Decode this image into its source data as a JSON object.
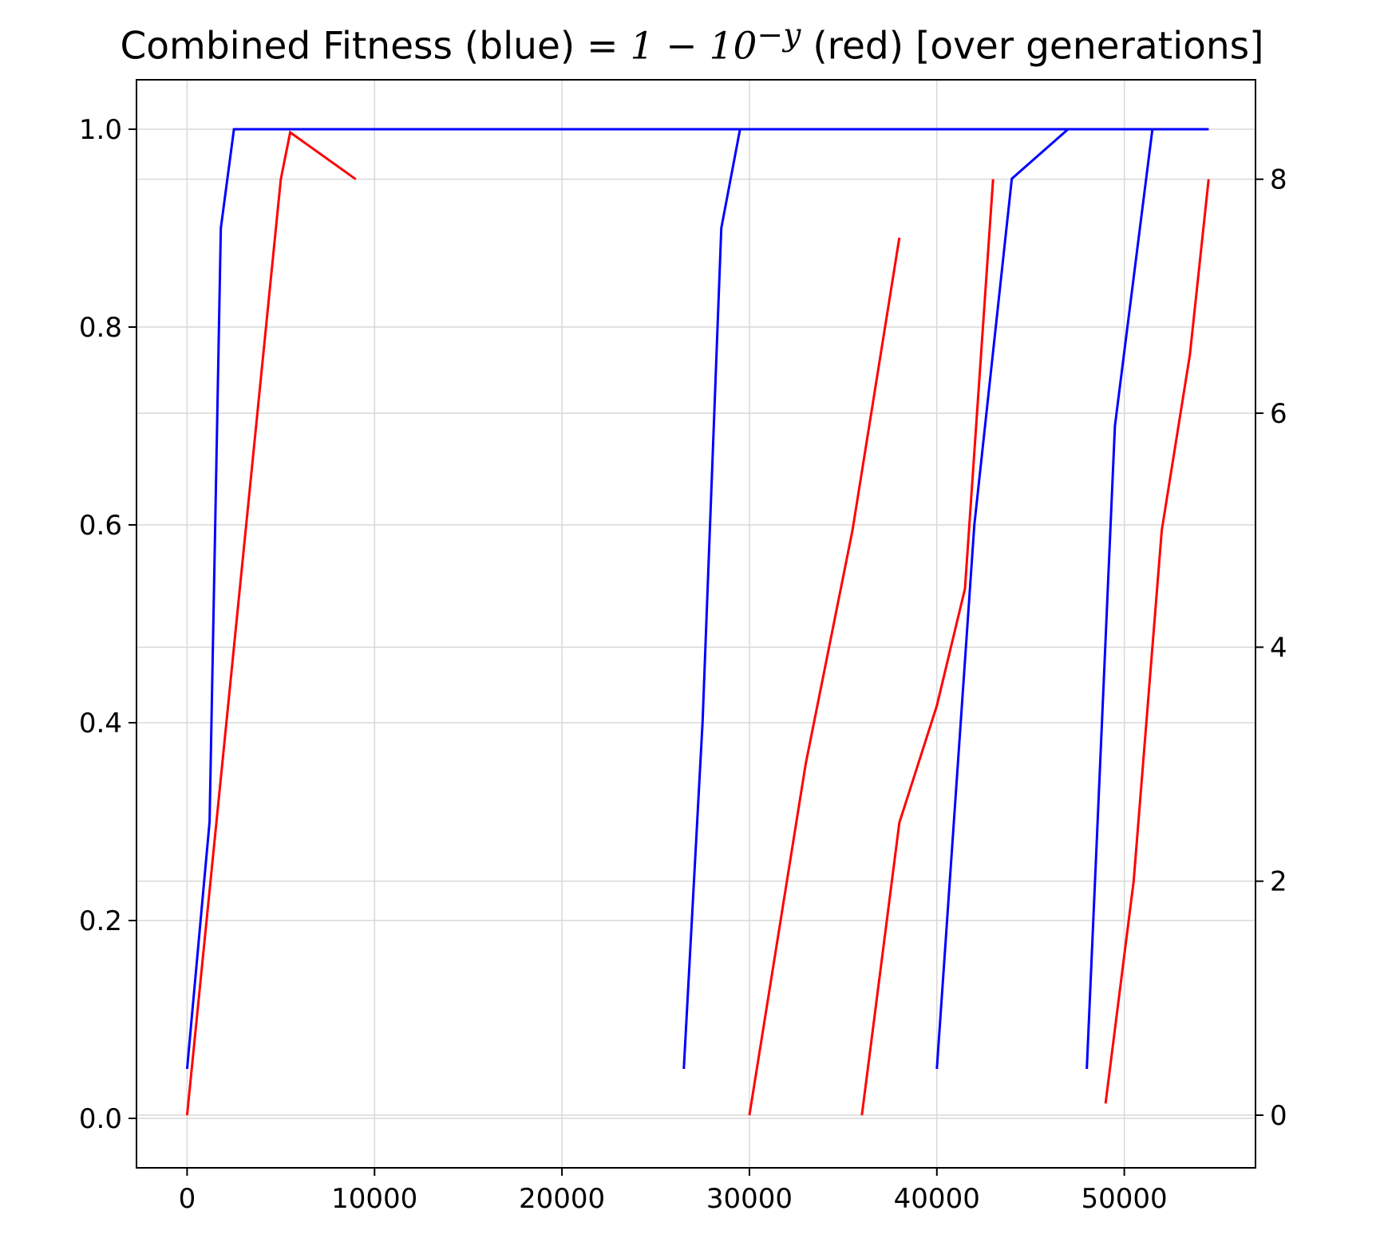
{
  "chart_data": {
    "type": "line",
    "title": {
      "prefix": "Combined Fitness (blue) =  ",
      "formula_base": "1 − 10",
      "formula_exp": "−y",
      "suffix": " (red) [over generations]"
    },
    "xlabel": "",
    "ylabel": "",
    "xlim": [
      -2700,
      57000
    ],
    "ylim": [
      -0.05,
      1.05
    ],
    "y2lim": [
      -0.45,
      8.85
    ],
    "x_ticks": [
      0,
      10000,
      20000,
      30000,
      40000,
      50000
    ],
    "y_ticks": [
      0.0,
      0.2,
      0.4,
      0.6,
      0.8,
      1.0
    ],
    "y2_ticks": [
      0,
      2,
      4,
      6,
      8
    ],
    "x_tick_labels": [
      "0",
      "10000",
      "20000",
      "30000",
      "40000",
      "50000"
    ],
    "y_tick_labels": [
      "0.0",
      "0.2",
      "0.4",
      "0.6",
      "0.8",
      "1.0"
    ],
    "y2_tick_labels": [
      "0",
      "2",
      "4",
      "6",
      "8"
    ],
    "grid": true,
    "colors": {
      "blue": "#0000ff",
      "red": "#ff0000",
      "grid": "#d9d9d9"
    },
    "series": [
      {
        "axis": "left",
        "color": "blue",
        "values": [
          [
            0,
            0.05
          ],
          [
            1200,
            0.3
          ],
          [
            1800,
            0.9
          ],
          [
            2500,
            1.0
          ],
          [
            54500,
            1.0
          ]
        ]
      },
      {
        "axis": "left",
        "color": "blue",
        "values": [
          [
            26500,
            0.05
          ],
          [
            27500,
            0.4
          ],
          [
            28500,
            0.9
          ],
          [
            29500,
            1.0
          ],
          [
            38000,
            1.0
          ]
        ]
      },
      {
        "axis": "left",
        "color": "blue",
        "values": [
          [
            40000,
            0.05
          ],
          [
            42000,
            0.6
          ],
          [
            44000,
            0.95
          ],
          [
            47000,
            1.0
          ],
          [
            48200,
            1.0
          ]
        ]
      },
      {
        "axis": "left",
        "color": "blue",
        "values": [
          [
            48000,
            0.05
          ],
          [
            49500,
            0.7
          ],
          [
            51500,
            1.0
          ],
          [
            54500,
            1.0
          ]
        ]
      },
      {
        "axis": "right",
        "color": "red",
        "values": [
          [
            0,
            0.0
          ],
          [
            2500,
            4.0
          ],
          [
            5000,
            8.0
          ],
          [
            5500,
            8.4
          ],
          [
            9000,
            8.0
          ]
        ]
      },
      {
        "axis": "right",
        "color": "red",
        "values": [
          [
            30000,
            0.0
          ],
          [
            33000,
            3.0
          ],
          [
            35500,
            5.0
          ],
          [
            38000,
            7.5
          ]
        ]
      },
      {
        "axis": "right",
        "color": "red",
        "values": [
          [
            36000,
            0.0
          ],
          [
            38000,
            2.5
          ],
          [
            40000,
            3.5
          ],
          [
            41500,
            4.5
          ],
          [
            43000,
            8.0
          ]
        ]
      },
      {
        "axis": "right",
        "color": "red",
        "values": [
          [
            49000,
            0.1
          ],
          [
            50500,
            2.0
          ],
          [
            52000,
            5.0
          ],
          [
            53500,
            6.5
          ],
          [
            54500,
            8.0
          ]
        ]
      }
    ]
  }
}
